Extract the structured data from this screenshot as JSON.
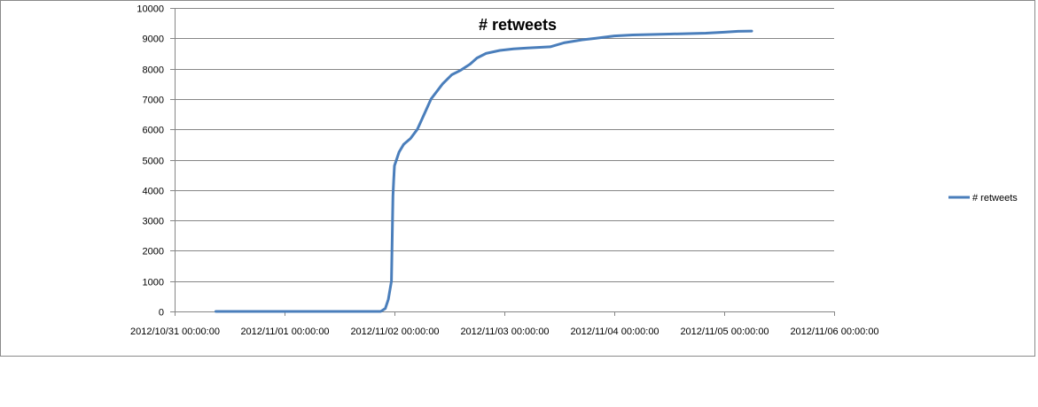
{
  "chart_data": {
    "type": "line",
    "title": "# retweets",
    "xlabel": "",
    "ylabel": "",
    "ylim": [
      0,
      10000
    ],
    "y_ticks": [
      0,
      1000,
      2000,
      3000,
      4000,
      5000,
      6000,
      7000,
      8000,
      9000,
      10000
    ],
    "x_tick_labels": [
      "2012/10/31 00:00:00",
      "2012/11/01 00:00:00",
      "2012/11/02 00:00:00",
      "2012/11/03 00:00:00",
      "2012/11/04 00:00:00",
      "2012/11/05 00:00:00",
      "2012/11/06 00:00:00"
    ],
    "xlim": [
      "2012/10/31 00:00",
      "2012/11/06 00:00"
    ],
    "grid": "horizontal",
    "legend_position": "right",
    "colors": {
      "series": "#4a7ebb",
      "grid": "#868686",
      "axis": "#868686"
    },
    "series": [
      {
        "name": "# retweets",
        "x": [
          "2012/10/31 09:00",
          "2012/11/01 00:00",
          "2012/11/01 12:00",
          "2012/11/01 21:00",
          "2012/11/01 22:00",
          "2012/11/01 22:40",
          "2012/11/01 23:20",
          "2012/11/01 23:40",
          "2012/11/01 23:50",
          "2012/11/02 00:00",
          "2012/11/02 01:00",
          "2012/11/02 02:00",
          "2012/11/02 03:30",
          "2012/11/02 05:00",
          "2012/11/02 06:30",
          "2012/11/02 08:00",
          "2012/11/02 10:30",
          "2012/11/02 12:30",
          "2012/11/02 14:30",
          "2012/11/02 16:30",
          "2012/11/02 18:00",
          "2012/11/02 20:00",
          "2012/11/02 23:00",
          "2012/11/03 02:00",
          "2012/11/03 05:00",
          "2012/11/03 10:00",
          "2012/11/03 13:00",
          "2012/11/03 17:00",
          "2012/11/03 20:00",
          "2012/11/04 00:00",
          "2012/11/04 04:00",
          "2012/11/04 12:00",
          "2012/11/04 20:00",
          "2012/11/05 00:00",
          "2012/11/05 03:00",
          "2012/11/05 06:00"
        ],
        "y": [
          0,
          0,
          0,
          0,
          100,
          400,
          1000,
          3800,
          4300,
          4800,
          5250,
          5500,
          5700,
          6000,
          6500,
          7000,
          7500,
          7800,
          7950,
          8150,
          8350,
          8500,
          8600,
          8650,
          8680,
          8720,
          8850,
          8950,
          9000,
          9080,
          9110,
          9140,
          9170,
          9200,
          9230,
          9240
        ]
      }
    ]
  }
}
